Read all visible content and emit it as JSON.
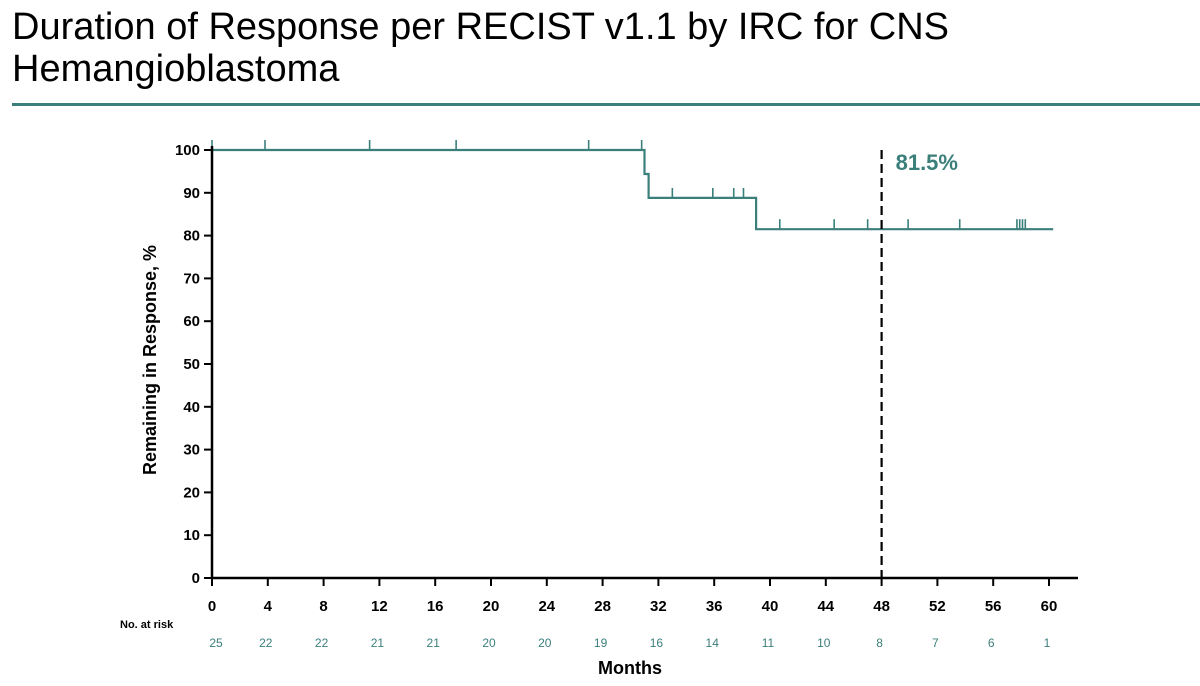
{
  "colors": {
    "accent": "#3b7f7b",
    "axis": "#000000"
  },
  "chart_data": {
    "type": "line",
    "title": "Duration of Response per RECIST v1.1 by IRC for CNS Hemangioblastoma",
    "xlabel": "Months",
    "ylabel": "Remaining in Response, %",
    "xlim": [
      0,
      62
    ],
    "ylim": [
      0,
      100
    ],
    "x_ticks": [
      0,
      4,
      8,
      12,
      16,
      20,
      24,
      28,
      32,
      36,
      40,
      44,
      48,
      52,
      56,
      60
    ],
    "y_ticks": [
      0,
      10,
      20,
      30,
      40,
      50,
      60,
      70,
      80,
      90,
      100
    ],
    "grid": false,
    "series": [
      {
        "steps": [
          [
            0,
            100
          ],
          [
            31.0,
            100
          ],
          [
            31.0,
            94.4
          ],
          [
            31.3,
            94.4
          ],
          [
            31.3,
            88.8
          ],
          [
            39.0,
            88.8
          ],
          [
            39.0,
            81.5
          ],
          [
            60.3,
            81.5
          ]
        ],
        "censor_x": [
          0,
          3.8,
          11.3,
          17.5,
          27.0,
          30.8,
          33.0,
          35.9,
          37.4,
          38.1,
          40.7,
          44.6,
          47.0,
          49.9,
          53.6,
          57.7,
          57.9,
          58.1,
          58.3
        ]
      }
    ],
    "annotations": [
      {
        "x": 48,
        "text": "81.5%"
      }
    ],
    "risk_table": {
      "label": "No. at risk",
      "x": [
        0,
        4,
        8,
        12,
        16,
        20,
        24,
        28,
        32,
        36,
        40,
        44,
        48,
        52,
        56,
        60
      ],
      "values": [
        "25",
        "22",
        "22",
        "21",
        "21",
        "20",
        "20",
        "19",
        "16",
        "14",
        "11",
        "10",
        "8",
        "7",
        "6",
        "1"
      ]
    }
  }
}
